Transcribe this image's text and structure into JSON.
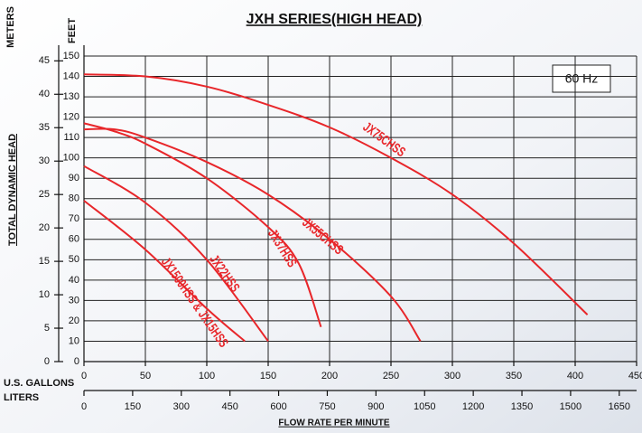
{
  "chart_data": {
    "type": "line",
    "title": "JXH SERIES(HIGH HEAD)",
    "annotation": "60 Hz",
    "x_label": "U.S. GALLONS",
    "x2_label": "LITERS",
    "x_axis_title": "FLOW RATE PER MINUTE",
    "y_label": "FEET",
    "y2_label": "METERS",
    "y_axis_title": "TOTAL DYNAMIC HEAD",
    "xlim": [
      0,
      450
    ],
    "xticks": [
      0,
      50,
      100,
      150,
      200,
      250,
      300,
      350,
      400,
      450
    ],
    "x2lim": [
      0,
      1703.4
    ],
    "x2ticks": [
      0,
      150,
      300,
      450,
      600,
      750,
      900,
      1050,
      1200,
      1350,
      1500,
      1650
    ],
    "ylim": [
      0,
      150
    ],
    "yticks": [
      0,
      10,
      20,
      30,
      40,
      50,
      60,
      70,
      80,
      90,
      100,
      110,
      120,
      130,
      140,
      150
    ],
    "y2lim": [
      0,
      45.72
    ],
    "y2ticks": [
      0,
      5,
      10,
      15,
      20,
      25,
      30,
      35,
      40,
      45
    ],
    "grid": true,
    "series": [
      {
        "name": "JX75CHSS",
        "color": "#e8262a",
        "x": [
          0,
          50,
          100,
          150,
          200,
          250,
          300,
          350,
          410
        ],
        "values": [
          141,
          140,
          135,
          126,
          115,
          100,
          82,
          58,
          23
        ]
      },
      {
        "name": "JX55CHSS",
        "color": "#e8262a",
        "x": [
          0,
          25,
          50,
          100,
          150,
          200,
          250,
          274
        ],
        "values": [
          114,
          114,
          110,
          98,
          82,
          60,
          32,
          10
        ]
      },
      {
        "name": "JX37HSS",
        "color": "#e8262a",
        "x": [
          0,
          25,
          50,
          100,
          150,
          175,
          193
        ],
        "values": [
          117,
          113,
          107,
          90,
          66,
          48,
          17
        ]
      },
      {
        "name": "JX22HSS",
        "color": "#e8262a",
        "x": [
          0,
          50,
          100,
          150
        ],
        "values": [
          96,
          78,
          50,
          10
        ]
      },
      {
        "name": "JX1500HSS & JX15HSS",
        "color": "#e8262a",
        "x": [
          0,
          50,
          100,
          131
        ],
        "values": [
          79,
          55,
          26,
          10
        ]
      }
    ]
  }
}
